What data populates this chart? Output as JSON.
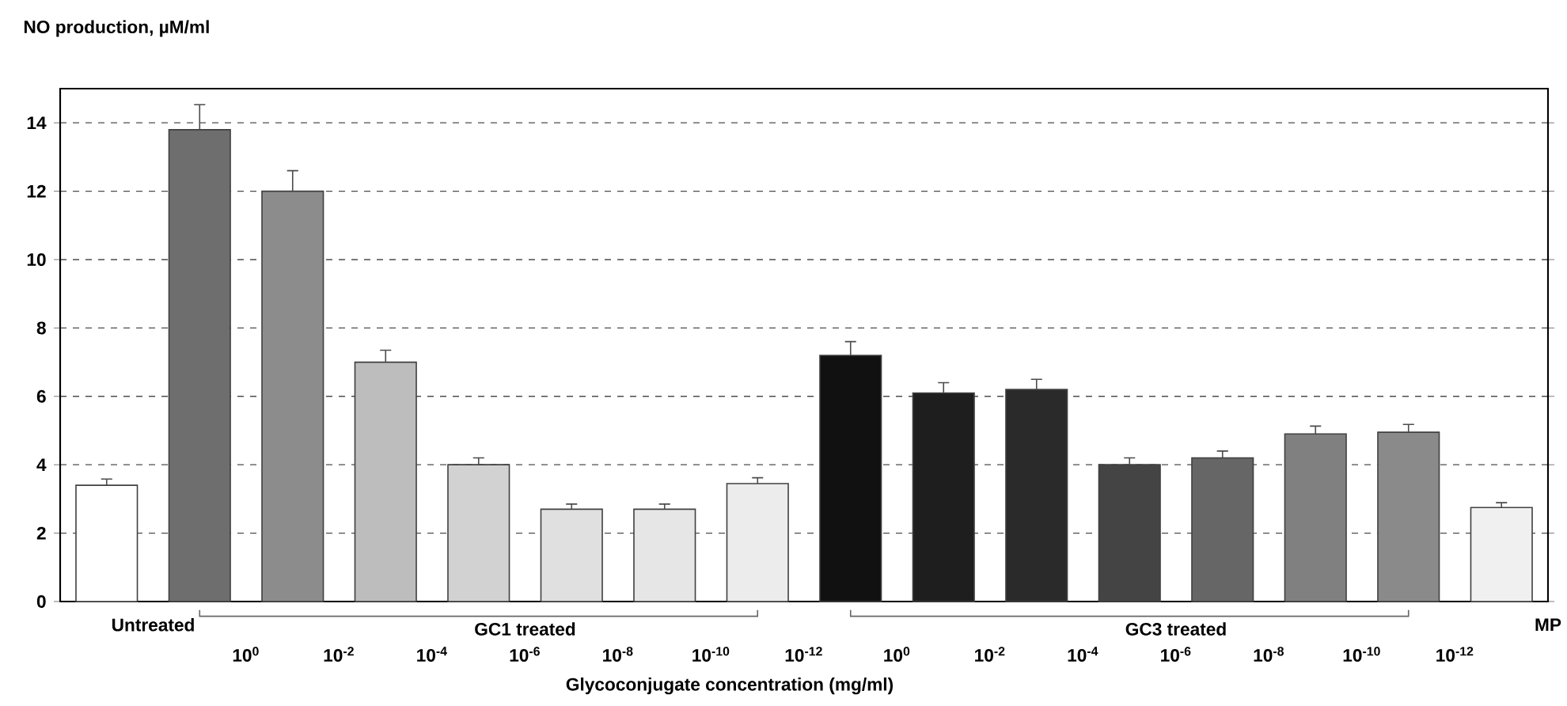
{
  "chart_data": {
    "type": "bar",
    "ylabel": "NO production, µM/ml",
    "xlabel": "Glycoconjugate concentration  (mg/ml)",
    "categories": [
      "Untreated",
      "10$^{0}$",
      "10$^{-2}$",
      "10$^{-4}$",
      "10$^{-6}$",
      "10$^{-8}$",
      "10$^{-10}$",
      "10$^{-12}$",
      "10$^{0}$",
      "10$^{-2}$",
      "10$^{-4}$",
      "10$^{-6}$",
      "10$^{-8}$",
      "10$^{-10}$",
      "10$^{-12}$",
      "MP"
    ],
    "values": [
      3.4,
      13.8,
      12.0,
      7.0,
      4.0,
      2.7,
      2.7,
      3.45,
      7.2,
      6.1,
      6.2,
      4.0,
      4.2,
      4.9,
      4.95,
      2.75
    ],
    "errors": [
      [
        3.4,
        3.58
      ],
      [
        13.8,
        14.53
      ],
      [
        12.0,
        12.6
      ],
      [
        7.0,
        7.35
      ],
      [
        4.0,
        4.2
      ],
      [
        2.7,
        2.85
      ],
      [
        2.7,
        2.85
      ],
      [
        3.45,
        3.62
      ],
      [
        7.2,
        7.6
      ],
      [
        6.1,
        6.4
      ],
      [
        6.2,
        6.5
      ],
      [
        4.0,
        4.2
      ],
      [
        4.2,
        4.4
      ],
      [
        4.9,
        5.13
      ],
      [
        4.95,
        5.18
      ],
      [
        2.75,
        2.89
      ]
    ],
    "colors": [
      "#ffffff",
      "#6e6e6e",
      "#8c8c8c",
      "#bdbdbd",
      "#d2d2d2",
      "#e0e0e0",
      "#e6e6e6",
      "#ececec",
      "#111111",
      "#1e1e1e",
      "#2a2a2a",
      "#444444",
      "#666666",
      "#808080",
      "#8a8a8a",
      "#f0f0f0"
    ],
    "ylim": [
      0,
      15
    ],
    "yticks": [
      0,
      2,
      4,
      6,
      8,
      10,
      12,
      14
    ],
    "grid": "y",
    "annotations": [
      "GC1 treated",
      "GC3 treated"
    ]
  }
}
